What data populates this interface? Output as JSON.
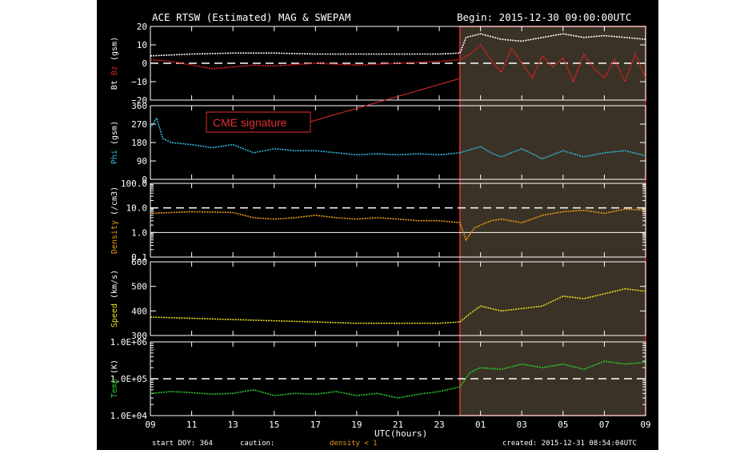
{
  "header": {
    "title": "ACE RTSW (Estimated) MAG & SWEPAM",
    "begin": "Begin: 2015-12-30 09:00:00UTC"
  },
  "annotation": {
    "text": "CME signature"
  },
  "footer": {
    "start_doy": "start DOY: 364",
    "caution": "caution:",
    "density_note": "density < 1",
    "created": "created: 2015-12-31 08:54:04UTC"
  },
  "colors": {
    "background": "#000000",
    "highlight_fill": "#3a3226",
    "highlight_border": "#e03030",
    "bt": "#ffffff",
    "bz": "#e02020",
    "phi": "#30b8d8",
    "density": "#e89a18",
    "speed": "#e6e020",
    "temp": "#30c830"
  },
  "chart_data": {
    "type": "line",
    "x_axis": {
      "label": "UTC(hours)",
      "ticks": [
        "09",
        "11",
        "13",
        "15",
        "17",
        "19",
        "21",
        "23",
        "01",
        "03",
        "05",
        "07",
        "09"
      ],
      "range_hours": [
        0,
        24
      ]
    },
    "highlight": {
      "x_start_hours": 15,
      "x_end_hours": 24,
      "label": "CME signature"
    },
    "panels": [
      {
        "id": "mag",
        "ylabel_parts": [
          {
            "text": "Bt",
            "color": "#ffffff"
          },
          {
            "text": " Bz",
            "color": "#e02020"
          },
          {
            "text": " (gsm)",
            "color": "#ffffff"
          }
        ],
        "ylim": [
          -20,
          20
        ],
        "yticks": [
          "20",
          "10",
          "0",
          "−10",
          "−20"
        ],
        "ytick_values": [
          20,
          10,
          0,
          -10,
          -20
        ],
        "dashed_lines": [
          0
        ],
        "series": [
          {
            "name": "Bt",
            "color": "#ffffff",
            "points": [
              [
                0,
                4
              ],
              [
                2,
                5
              ],
              [
                4,
                5.5
              ],
              [
                6,
                5.5
              ],
              [
                8,
                5
              ],
              [
                10,
                5
              ],
              [
                12,
                5
              ],
              [
                14,
                5
              ],
              [
                15,
                5.5
              ],
              [
                15.3,
                14
              ],
              [
                16,
                16
              ],
              [
                17,
                13
              ],
              [
                18,
                12
              ],
              [
                19,
                14
              ],
              [
                20,
                16
              ],
              [
                21,
                14
              ],
              [
                22,
                15
              ],
              [
                23,
                14
              ],
              [
                24,
                13
              ]
            ]
          },
          {
            "name": "Bz",
            "color": "#e02020",
            "points": [
              [
                0,
                2
              ],
              [
                1,
                1
              ],
              [
                2,
                -1
              ],
              [
                3,
                -3
              ],
              [
                4,
                -2
              ],
              [
                5,
                -1
              ],
              [
                6,
                -1.5
              ],
              [
                8,
                0
              ],
              [
                10,
                -1
              ],
              [
                12,
                0
              ],
              [
                14,
                1
              ],
              [
                15,
                2
              ],
              [
                15.5,
                5
              ],
              [
                16,
                10
              ],
              [
                16.5,
                2
              ],
              [
                17,
                -5
              ],
              [
                17.5,
                8
              ],
              [
                18,
                0
              ],
              [
                18.5,
                -8
              ],
              [
                19,
                4
              ],
              [
                19.5,
                -2
              ],
              [
                20,
                3
              ],
              [
                20.5,
                -10
              ],
              [
                21,
                5
              ],
              [
                21.5,
                -3
              ],
              [
                22,
                -8
              ],
              [
                22.5,
                2
              ],
              [
                23,
                -10
              ],
              [
                23.5,
                5
              ],
              [
                24,
                -8
              ]
            ]
          }
        ]
      },
      {
        "id": "phi",
        "ylabel_parts": [
          {
            "text": "Phi",
            "color": "#30b8d8"
          },
          {
            "text": " (gsm)",
            "color": "#ffffff"
          }
        ],
        "ylim": [
          0,
          360
        ],
        "yticks": [
          "360",
          "270",
          "180",
          "90",
          "0"
        ],
        "ytick_values": [
          360,
          270,
          180,
          90,
          0
        ],
        "dashed_lines": [],
        "series": [
          {
            "name": "Phi",
            "color": "#30b8d8",
            "points": [
              [
                0,
                250
              ],
              [
                0.3,
                300
              ],
              [
                0.6,
                200
              ],
              [
                1,
                180
              ],
              [
                2,
                170
              ],
              [
                3,
                155
              ],
              [
                4,
                170
              ],
              [
                5,
                130
              ],
              [
                6,
                150
              ],
              [
                7,
                140
              ],
              [
                8,
                140
              ],
              [
                9,
                130
              ],
              [
                10,
                120
              ],
              [
                11,
                125
              ],
              [
                12,
                120
              ],
              [
                13,
                125
              ],
              [
                14,
                120
              ],
              [
                15,
                130
              ],
              [
                16,
                160
              ],
              [
                16.5,
                130
              ],
              [
                17,
                110
              ],
              [
                18,
                150
              ],
              [
                19,
                100
              ],
              [
                20,
                140
              ],
              [
                21,
                110
              ],
              [
                22,
                130
              ],
              [
                23,
                140
              ],
              [
                24,
                115
              ]
            ]
          }
        ]
      },
      {
        "id": "density",
        "ylabel_parts": [
          {
            "text": "Density",
            "color": "#e89a18"
          },
          {
            "text": " (/cm3)",
            "color": "#ffffff"
          }
        ],
        "scale": "log",
        "ylim": [
          0.1,
          100
        ],
        "yticks": [
          "100.0",
          "10.0",
          "1.0",
          "0.1"
        ],
        "ytick_values": [
          100,
          10,
          1,
          0.1
        ],
        "dashed_lines": [
          10
        ],
        "solid_lines": [
          1
        ],
        "series": [
          {
            "name": "Density",
            "color": "#e89a18",
            "points": [
              [
                0,
                6
              ],
              [
                2,
                7
              ],
              [
                4,
                6.5
              ],
              [
                5,
                4
              ],
              [
                6,
                3.5
              ],
              [
                7,
                4
              ],
              [
                8,
                5
              ],
              [
                9,
                4
              ],
              [
                10,
                3.5
              ],
              [
                11,
                4
              ],
              [
                12,
                3.5
              ],
              [
                13,
                3
              ],
              [
                14,
                3
              ],
              [
                15,
                2.5
              ],
              [
                15.3,
                0.5
              ],
              [
                15.7,
                1.5
              ],
              [
                16,
                2
              ],
              [
                16.5,
                3
              ],
              [
                17,
                3.5
              ],
              [
                18,
                2.5
              ],
              [
                19,
                5
              ],
              [
                20,
                7
              ],
              [
                21,
                8
              ],
              [
                22,
                6
              ],
              [
                23,
                9
              ],
              [
                24,
                8
              ]
            ]
          }
        ]
      },
      {
        "id": "speed",
        "ylabel_parts": [
          {
            "text": "Speed",
            "color": "#e6e020"
          },
          {
            "text": " (km/s)",
            "color": "#ffffff"
          }
        ],
        "ylim": [
          300,
          600
        ],
        "yticks": [
          "600",
          "500",
          "400",
          "300"
        ],
        "ytick_values": [
          600,
          500,
          400,
          300
        ],
        "dashed_lines": [],
        "series": [
          {
            "name": "Speed",
            "color": "#e6e020",
            "points": [
              [
                0,
                375
              ],
              [
                2,
                370
              ],
              [
                4,
                365
              ],
              [
                6,
                360
              ],
              [
                8,
                355
              ],
              [
                10,
                350
              ],
              [
                12,
                350
              ],
              [
                14,
                350
              ],
              [
                15,
                355
              ],
              [
                15.5,
                390
              ],
              [
                16,
                420
              ],
              [
                17,
                400
              ],
              [
                18,
                410
              ],
              [
                19,
                420
              ],
              [
                20,
                460
              ],
              [
                21,
                450
              ],
              [
                22,
                470
              ],
              [
                23,
                490
              ],
              [
                24,
                480
              ]
            ]
          }
        ]
      },
      {
        "id": "temp",
        "ylabel_parts": [
          {
            "text": "Temp",
            "color": "#30c830"
          },
          {
            "text": " (K)",
            "color": "#ffffff"
          }
        ],
        "scale": "log",
        "ylim": [
          10000,
          1000000
        ],
        "yticks": [
          "1.0E+06",
          "1.0E+05",
          "1.0E+04"
        ],
        "ytick_values": [
          1000000,
          100000,
          10000
        ],
        "dashed_lines": [
          100000
        ],
        "series": [
          {
            "name": "Temp",
            "color": "#30c830",
            "points": [
              [
                0,
                40000
              ],
              [
                1,
                45000
              ],
              [
                2,
                42000
              ],
              [
                3,
                38000
              ],
              [
                4,
                40000
              ],
              [
                5,
                50000
              ],
              [
                6,
                35000
              ],
              [
                7,
                40000
              ],
              [
                8,
                38000
              ],
              [
                9,
                45000
              ],
              [
                10,
                35000
              ],
              [
                11,
                40000
              ],
              [
                12,
                30000
              ],
              [
                13,
                38000
              ],
              [
                14,
                45000
              ],
              [
                15,
                60000
              ],
              [
                15.5,
                150000
              ],
              [
                16,
                200000
              ],
              [
                17,
                180000
              ],
              [
                18,
                250000
              ],
              [
                19,
                200000
              ],
              [
                20,
                250000
              ],
              [
                21,
                180000
              ],
              [
                22,
                300000
              ],
              [
                23,
                250000
              ],
              [
                24,
                280000
              ]
            ]
          }
        ]
      }
    ]
  }
}
